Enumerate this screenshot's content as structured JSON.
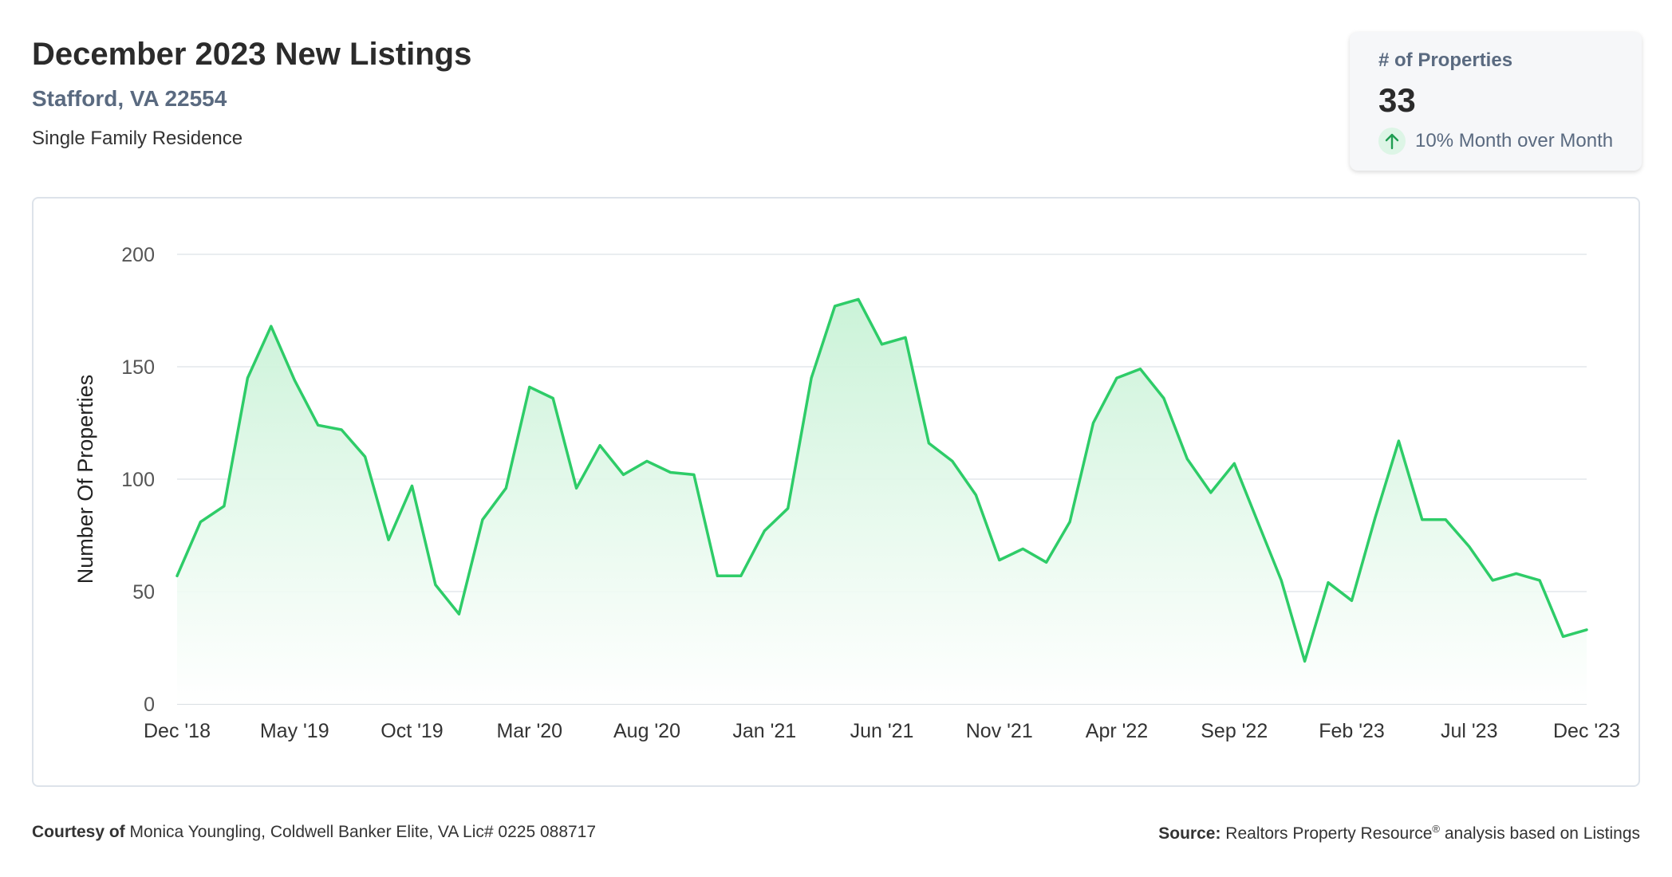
{
  "header": {
    "title": "December 2023 New Listings",
    "location": "Stafford, VA 22554",
    "property_type": "Single Family Residence"
  },
  "kpi": {
    "label": "# of Properties",
    "value": "33",
    "change": "10% Month over Month",
    "change_direction": "up",
    "icon": "arrow-up-icon"
  },
  "chart_data": {
    "type": "area",
    "ylabel": "Number Of Properties",
    "ylim": [
      0,
      200
    ],
    "yticks": [
      0,
      50,
      100,
      150,
      200
    ],
    "xticks": [
      "Dec '18",
      "May '19",
      "Oct '19",
      "Mar '20",
      "Aug '20",
      "Jan '21",
      "Jun '21",
      "Nov '21",
      "Apr '22",
      "Sep '22",
      "Feb '23",
      "Jul '23",
      "Dec '23"
    ],
    "grid": true,
    "colors": {
      "line": "#2ecc68",
      "fill_top": "#c8f2d6",
      "fill_bottom": "#ffffff",
      "grid": "#e3e7ec"
    },
    "series": [
      {
        "values": [
          57,
          81,
          88,
          145,
          168,
          144,
          124,
          122,
          110,
          73,
          97,
          53,
          40,
          82,
          96,
          141,
          136,
          96,
          115,
          102,
          108,
          103,
          102,
          57,
          57,
          77,
          87,
          145,
          177,
          180,
          160,
          163,
          116,
          108,
          93,
          64,
          69,
          63,
          81,
          125,
          145,
          149,
          136,
          109,
          94,
          107,
          81,
          55,
          19,
          54,
          46,
          83,
          117,
          82,
          82,
          70,
          55,
          58,
          55,
          30,
          33
        ]
      }
    ]
  },
  "footer": {
    "courtesy_label": "Courtesy of",
    "courtesy_text": "Monica Youngling, Coldwell Banker Elite, VA Lic# 0225 088717",
    "source_label": "Source:",
    "source_text_1": "Realtors Property Resource",
    "source_sup": "®",
    "source_text_2": "analysis based on Listings"
  }
}
